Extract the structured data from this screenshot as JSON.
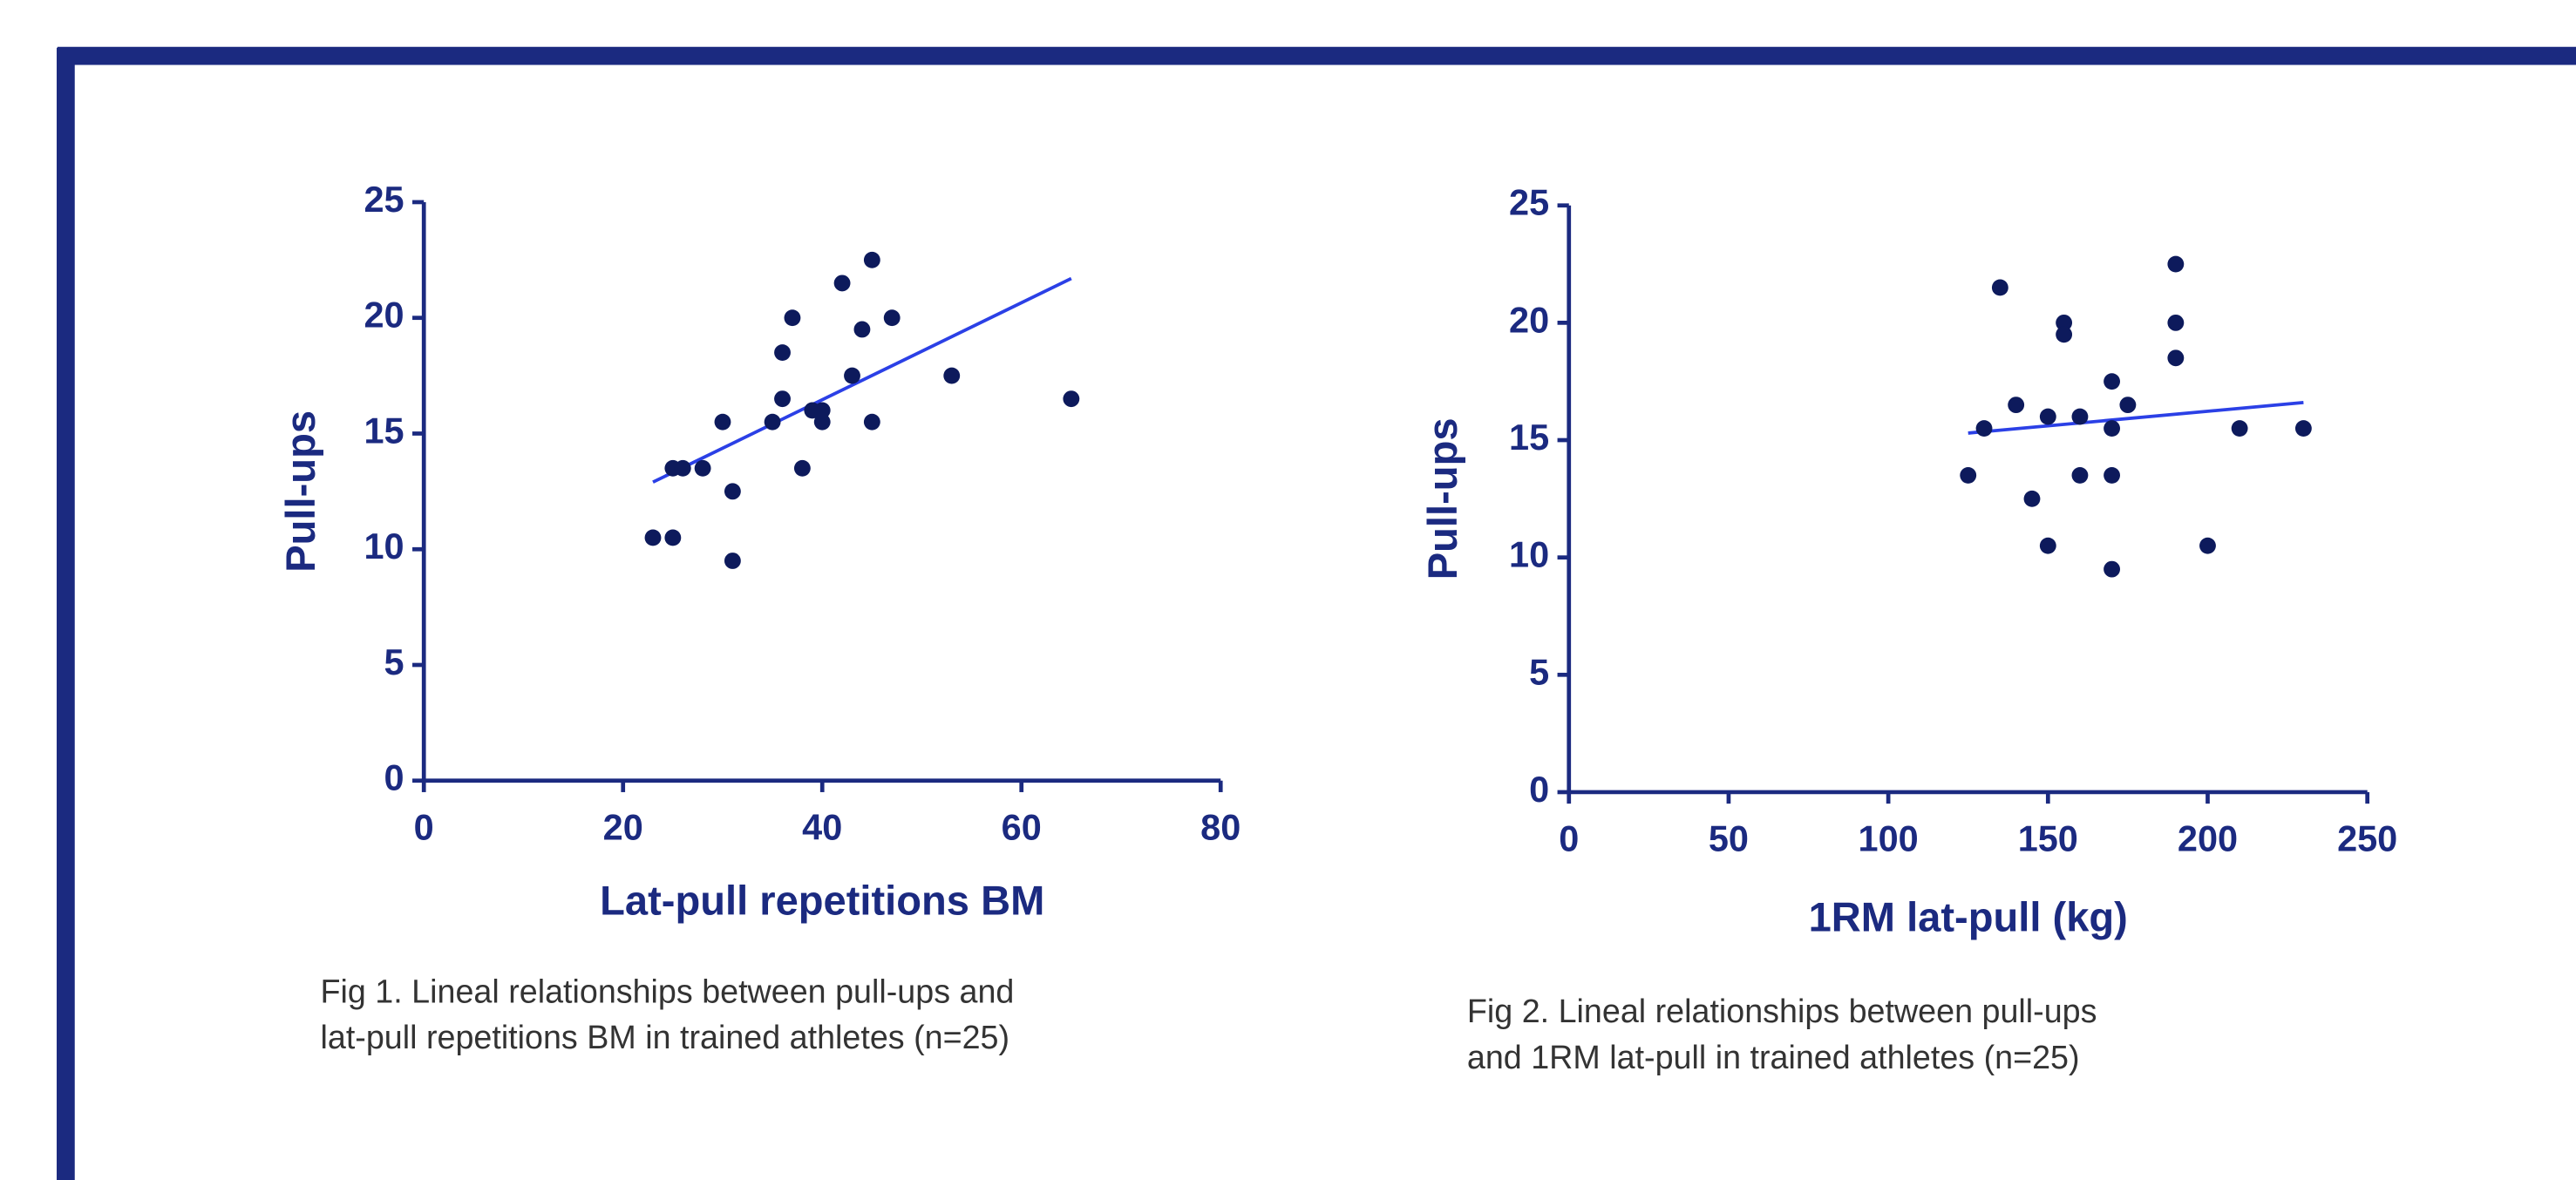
{
  "chart_data": [
    {
      "type": "scatter",
      "xlabel": "Lat-pull repetitions BM",
      "ylabel": "Pull-ups",
      "caption": [
        "Fig 1. Lineal relationships between pull-ups and",
        "lat-pull repetitions BM in trained athletes (n=25)"
      ],
      "xlim": [
        0,
        80
      ],
      "ylim": [
        0,
        25
      ],
      "xticks": [
        0,
        20,
        40,
        60,
        80
      ],
      "yticks": [
        0,
        5,
        10,
        15,
        20,
        25
      ],
      "color": "#0d1a5c",
      "line_color": "#2b40e6",
      "x": [
        23,
        25,
        25,
        26,
        28,
        30,
        31,
        31,
        35,
        36,
        36,
        37,
        38,
        39,
        40,
        40,
        42,
        43,
        44,
        45,
        45,
        47,
        53,
        65
      ],
      "values": [
        10.5,
        10.5,
        13.5,
        13.5,
        13.5,
        15.5,
        12.5,
        9.5,
        15.5,
        16.5,
        18.5,
        20,
        13.5,
        16,
        15.5,
        16,
        21.5,
        17.5,
        19.5,
        22.5,
        15.5,
        20,
        17.5,
        16.5
      ],
      "fit": {
        "x": [
          23,
          65
        ],
        "values": [
          12.9,
          21.7
        ]
      }
    },
    {
      "type": "scatter",
      "xlabel": "1RM lat-pull (kg)",
      "ylabel": "Pull-ups",
      "caption": [
        "Fig 2. Lineal relationships between pull-ups",
        "and 1RM lat-pull in trained athletes (n=25)"
      ],
      "xlim": [
        0,
        250
      ],
      "ylim": [
        0,
        25
      ],
      "xticks": [
        0,
        50,
        100,
        150,
        200,
        250
      ],
      "yticks": [
        0,
        5,
        10,
        15,
        20,
        25
      ],
      "color": "#0d1a5c",
      "line_color": "#2b40e6",
      "x": [
        125,
        130,
        135,
        140,
        145,
        150,
        150,
        155,
        155,
        160,
        160,
        170,
        170,
        170,
        170,
        175,
        190,
        190,
        190,
        200,
        210,
        230
      ],
      "values": [
        13.5,
        15.5,
        21.5,
        16.5,
        12.5,
        16,
        10.5,
        20,
        19.5,
        16,
        13.5,
        17.5,
        15.5,
        13.5,
        9.5,
        16.5,
        22.5,
        20,
        18.5,
        10.5,
        15.5,
        15.5
      ],
      "fit": {
        "x": [
          125,
          230
        ],
        "values": [
          15.3,
          16.6
        ]
      }
    }
  ]
}
